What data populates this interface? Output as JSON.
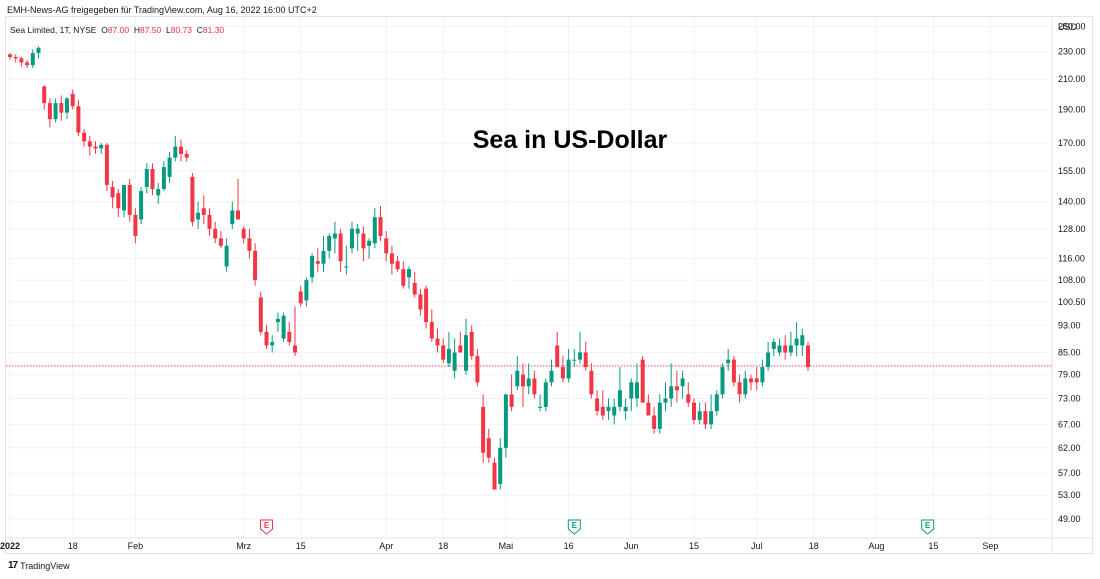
{
  "header": {
    "publisher": "EMH-News-AG freigegeben für TradingView.com, Aug 16, 2022 16:00 UTC+2"
  },
  "legend": {
    "symbol": "Sea Limited, 1T, NYSE",
    "o_label": "O",
    "o_value": "87.00",
    "h_label": "H",
    "h_value": "87.50",
    "l_label": "L",
    "l_value": "80.73",
    "c_label": "C",
    "c_value": "81.30"
  },
  "footer": {
    "brand": "TradingView",
    "logo": "17"
  },
  "colors": {
    "up": "#089981",
    "down": "#f23645",
    "grid": "#f0f3fa",
    "text": "#131722"
  },
  "chart_data": {
    "type": "candlestick",
    "title": "Sea in US-Dollar",
    "currency": "USD",
    "y_scale": "log",
    "ylim": [
      46,
      258
    ],
    "y_ticks": [
      "250.00",
      "230.00",
      "210.00",
      "190.00",
      "170.00",
      "155.00",
      "140.00",
      "128.00",
      "116.00",
      "108.00",
      "100.50",
      "93.00",
      "85.00",
      "79.00",
      "73.00",
      "67.00",
      "62.00",
      "57.00",
      "53.00",
      "49.00"
    ],
    "x_labels": [
      "2022",
      "18",
      "Feb",
      "Mrz",
      "15",
      "Apr",
      "18",
      "Mai",
      "16",
      "Jun",
      "15",
      "Jul",
      "18",
      "Aug",
      "15",
      "Sep"
    ],
    "x_label_index": [
      0,
      11,
      22,
      41,
      51,
      66,
      76,
      87,
      98,
      109,
      120,
      131,
      141,
      152,
      162,
      172
    ],
    "current_price": 81.3,
    "earnings_markers": [
      {
        "index": 45,
        "label": "E",
        "type": "down"
      },
      {
        "index": 99,
        "label": "E",
        "type": "up"
      },
      {
        "index": 161,
        "label": "E",
        "type": "up"
      }
    ],
    "candles": [
      [
        228,
        229,
        224,
        226
      ],
      [
        226,
        228,
        222,
        225
      ],
      [
        225,
        226,
        219,
        222
      ],
      [
        222,
        224,
        218,
        220
      ],
      [
        220,
        232,
        218,
        229
      ],
      [
        229,
        234,
        225,
        233
      ],
      [
        205,
        206,
        190,
        194
      ],
      [
        194,
        197,
        179,
        184
      ],
      [
        184,
        197,
        182,
        194
      ],
      [
        194,
        199,
        183,
        188
      ],
      [
        188,
        198,
        184,
        197
      ],
      [
        200,
        203,
        190,
        192
      ],
      [
        192,
        196,
        174,
        176
      ],
      [
        176,
        178,
        168,
        171
      ],
      [
        171,
        174,
        163,
        168
      ],
      [
        168,
        171,
        164,
        167
      ],
      [
        167,
        170,
        164,
        169
      ],
      [
        169,
        170,
        145,
        148
      ],
      [
        147,
        150,
        137,
        142
      ],
      [
        144,
        146,
        133,
        137
      ],
      [
        136,
        148,
        133,
        148
      ],
      [
        148,
        151,
        131,
        134
      ],
      [
        134,
        137,
        122,
        125
      ],
      [
        132,
        147,
        130,
        145
      ],
      [
        147,
        159,
        144,
        156
      ],
      [
        156,
        159,
        143,
        146
      ],
      [
        143,
        149,
        139,
        146
      ],
      [
        146,
        160,
        145,
        157
      ],
      [
        152,
        165,
        149,
        162
      ],
      [
        162,
        174,
        160,
        168
      ],
      [
        168,
        172,
        160,
        164
      ],
      [
        164,
        166,
        160,
        162
      ],
      [
        152,
        154,
        129,
        131
      ],
      [
        132,
        140,
        128,
        135
      ],
      [
        137,
        143,
        130,
        134
      ],
      [
        134,
        137,
        125,
        128
      ],
      [
        128,
        131,
        122,
        124
      ],
      [
        124,
        127,
        120,
        121
      ],
      [
        113,
        124,
        111,
        121
      ],
      [
        130,
        140,
        128,
        136
      ],
      [
        136,
        151,
        133,
        132
      ],
      [
        128,
        129,
        122,
        124
      ],
      [
        124,
        128,
        116,
        119
      ],
      [
        119,
        122,
        106,
        108
      ],
      [
        102,
        104,
        90,
        91
      ],
      [
        91,
        93,
        86,
        87
      ],
      [
        87,
        90,
        85,
        88
      ],
      [
        94,
        97,
        91,
        95
      ],
      [
        89,
        97,
        88,
        96
      ],
      [
        91,
        94,
        87,
        88
      ],
      [
        87,
        99,
        84,
        85
      ],
      [
        104,
        106,
        99,
        100
      ],
      [
        101,
        109,
        99,
        108
      ],
      [
        109,
        118,
        107,
        117
      ],
      [
        115,
        120,
        111,
        114
      ],
      [
        114,
        125,
        111,
        119
      ],
      [
        119,
        126,
        116,
        125
      ],
      [
        124,
        131,
        118,
        126
      ],
      [
        126,
        128,
        111,
        115
      ],
      [
        113,
        121,
        110,
        113
      ],
      [
        120,
        131,
        118,
        128
      ],
      [
        126,
        130,
        119,
        128
      ],
      [
        126,
        129,
        115,
        120
      ],
      [
        121,
        124,
        116,
        123
      ],
      [
        122,
        137,
        120,
        133
      ],
      [
        133,
        138,
        123,
        125
      ],
      [
        124,
        127,
        115,
        118
      ],
      [
        118,
        121,
        110,
        114
      ],
      [
        115,
        117,
        111,
        112
      ],
      [
        112,
        115,
        105,
        106
      ],
      [
        109,
        113,
        105,
        112
      ],
      [
        107,
        111,
        102,
        103
      ],
      [
        103,
        105,
        96,
        98
      ],
      [
        105,
        106,
        92,
        94
      ],
      [
        94,
        98,
        88,
        89
      ],
      [
        89,
        92,
        85,
        87
      ],
      [
        87,
        89,
        82,
        83
      ],
      [
        82,
        91,
        81,
        86
      ],
      [
        80,
        89,
        78,
        85
      ],
      [
        87,
        91,
        85,
        85
      ],
      [
        80,
        95,
        79,
        90
      ],
      [
        91,
        93,
        83,
        84
      ],
      [
        84,
        86,
        76,
        77
      ],
      [
        71,
        74,
        59,
        61
      ],
      [
        64,
        66,
        59,
        60
      ],
      [
        59,
        60,
        54,
        54
      ],
      [
        55,
        64,
        54,
        62
      ],
      [
        62,
        74,
        60,
        74
      ],
      [
        74,
        79,
        70,
        71
      ],
      [
        76,
        84,
        75,
        80
      ],
      [
        79,
        82,
        71,
        76
      ],
      [
        76,
        82,
        74,
        78
      ],
      [
        78,
        80,
        73,
        74
      ],
      [
        71,
        74,
        70,
        71
      ],
      [
        71,
        78,
        70,
        77
      ],
      [
        77,
        83,
        76,
        80
      ],
      [
        87,
        91,
        81,
        81
      ],
      [
        81,
        84,
        77,
        78
      ],
      [
        78,
        86,
        77,
        83
      ],
      [
        83,
        86,
        81,
        83
      ],
      [
        83,
        91,
        82,
        85
      ],
      [
        85,
        88,
        80,
        81
      ],
      [
        80,
        82,
        73,
        74
      ],
      [
        73,
        75,
        69,
        70
      ],
      [
        71,
        75,
        68,
        69
      ],
      [
        70,
        73,
        68,
        71
      ],
      [
        69,
        73,
        67,
        71
      ],
      [
        71,
        81,
        70,
        75
      ],
      [
        70,
        73,
        68,
        71
      ],
      [
        73,
        78,
        70,
        77
      ],
      [
        73,
        82,
        71,
        77
      ],
      [
        83,
        84,
        73,
        72
      ],
      [
        72,
        74,
        69,
        69
      ],
      [
        69,
        71,
        65,
        66
      ],
      [
        66,
        74,
        65,
        72
      ],
      [
        72,
        77,
        70,
        73
      ],
      [
        73,
        82,
        71,
        76
      ],
      [
        76,
        80,
        72,
        75
      ],
      [
        76,
        80,
        73,
        78
      ],
      [
        74,
        77,
        71,
        72
      ],
      [
        72,
        73,
        67,
        68
      ],
      [
        68,
        72,
        67,
        70
      ],
      [
        70,
        72,
        66,
        67
      ],
      [
        67,
        74,
        66,
        70
      ],
      [
        70,
        75,
        69,
        74
      ],
      [
        74,
        82,
        73,
        81
      ],
      [
        82,
        86,
        80,
        83
      ],
      [
        83,
        84,
        76,
        77
      ],
      [
        77,
        79,
        72,
        74
      ],
      [
        74,
        80,
        73,
        78
      ],
      [
        78,
        79,
        75,
        77
      ],
      [
        78,
        81,
        75,
        77
      ],
      [
        77,
        83,
        76,
        81
      ],
      [
        81,
        88,
        80,
        85
      ],
      [
        86,
        89,
        84,
        88
      ],
      [
        85,
        89,
        84,
        87
      ],
      [
        87,
        90,
        83,
        85
      ],
      [
        85,
        91,
        84,
        87
      ],
      [
        87,
        94,
        84,
        89
      ],
      [
        87,
        92,
        84,
        90
      ],
      [
        87,
        88,
        80,
        81
      ]
    ]
  }
}
